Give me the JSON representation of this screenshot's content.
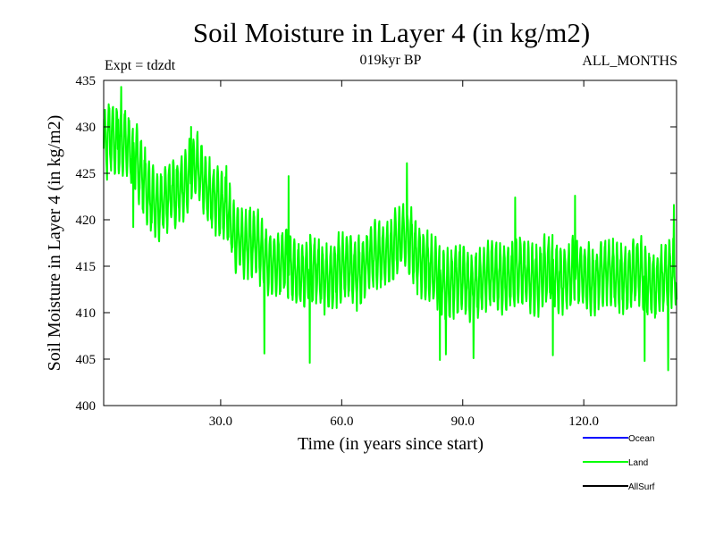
{
  "chart_data": {
    "type": "line",
    "title": "Soil Moisture in Layer 4 (in kg/m2)",
    "subtitle_left": "Expt = tdzdt",
    "subtitle_center": "019kyr BP",
    "subtitle_right": "ALL_MONTHS",
    "xlabel": "Time (in years since start)",
    "ylabel": "Soil Moisture in Layer 4 (in kg/m2)",
    "xlim": [
      1,
      143
    ],
    "ylim": [
      400,
      435
    ],
    "x_ticks": [
      30,
      60,
      90,
      120
    ],
    "x_tick_labels": [
      "30.0",
      "60.0",
      "90.0",
      "120.0"
    ],
    "y_ticks": [
      400,
      405,
      410,
      415,
      420,
      425,
      430,
      435
    ],
    "y_tick_labels": [
      "400",
      "405",
      "410",
      "415",
      "420",
      "425",
      "430",
      "435"
    ],
    "grid": false,
    "legend": [
      {
        "name": "Ocean",
        "color": "#0000ff"
      },
      {
        "name": "Land",
        "color": "#00ff00"
      },
      {
        "name": "AllSurf",
        "color": "#000000"
      }
    ],
    "series": [
      {
        "name": "Land",
        "color": "#00ff00",
        "sampling": "monthly, x = 1 + month/12",
        "trend_knots": [
          [
            1,
            428
          ],
          [
            6,
            429
          ],
          [
            10,
            425
          ],
          [
            15,
            421
          ],
          [
            20,
            424
          ],
          [
            24,
            425
          ],
          [
            28,
            423
          ],
          [
            33,
            419
          ],
          [
            38,
            417
          ],
          [
            45,
            415
          ],
          [
            55,
            414
          ],
          [
            65,
            415
          ],
          [
            72,
            417
          ],
          [
            77,
            418
          ],
          [
            82,
            414
          ],
          [
            90,
            413
          ],
          [
            100,
            414
          ],
          [
            115,
            414
          ],
          [
            125,
            414
          ],
          [
            133,
            414
          ],
          [
            140,
            413
          ],
          [
            143,
            415
          ]
        ],
        "amplitude": 3.3,
        "noise": 0.8,
        "seed": 7,
        "spikes": [
          [
            5.3,
            434.3
          ],
          [
            4.6,
            430.8
          ],
          [
            1.8,
            424.3
          ],
          [
            2.4,
            432.0
          ],
          [
            8.3,
            419.2
          ],
          [
            22.7,
            430.0
          ],
          [
            31.4,
            425.8
          ],
          [
            40.8,
            405.6
          ],
          [
            46.8,
            424.7
          ],
          [
            52.1,
            404.6
          ],
          [
            76.2,
            426.1
          ],
          [
            84.3,
            404.9
          ],
          [
            85.8,
            405.5
          ],
          [
            92.7,
            405.1
          ],
          [
            103.0,
            422.4
          ],
          [
            112.3,
            405.4
          ],
          [
            117.8,
            422.6
          ],
          [
            135.1,
            404.8
          ],
          [
            140.9,
            403.8
          ],
          [
            142.3,
            421.6
          ],
          [
            143.0,
            411.4
          ]
        ]
      }
    ]
  }
}
